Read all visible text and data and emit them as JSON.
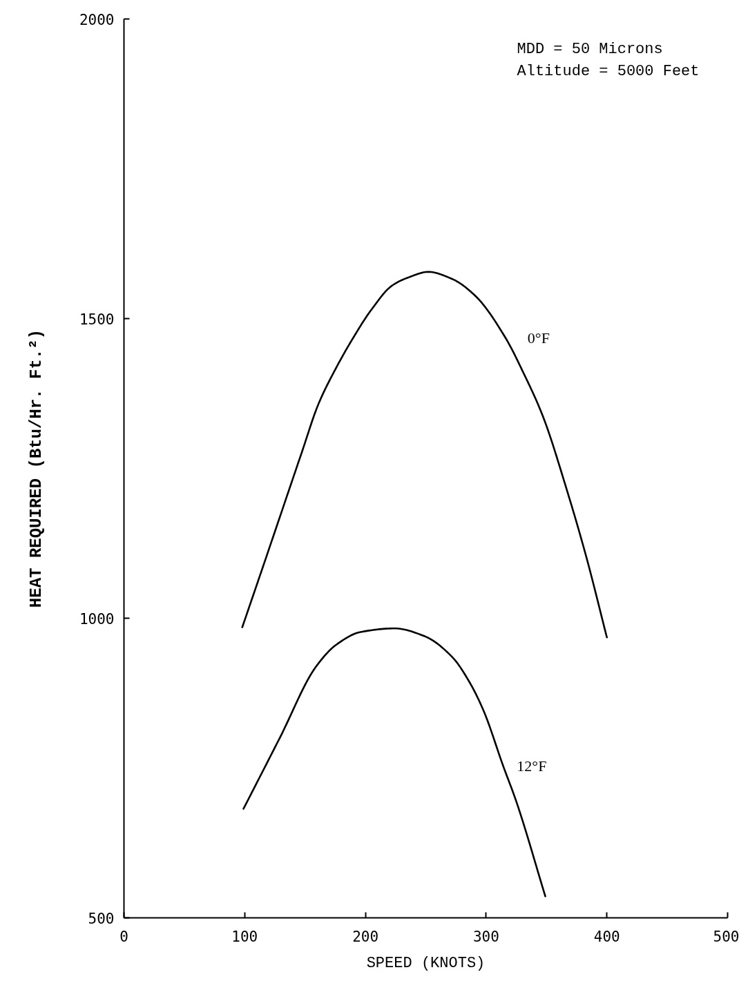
{
  "chart_data": {
    "type": "line",
    "xlabel": "SPEED (KNOTS)",
    "ylabel": "HEAT REQUIRED (Btu/Hr. Ft.²)",
    "annotations": [
      "MDD = 50 Microns",
      "Altitude = 5000 Feet"
    ],
    "xlim": [
      0,
      500
    ],
    "xticks": [
      0,
      100,
      200,
      300,
      400,
      500
    ],
    "ylim": [
      500,
      2000
    ],
    "yticks": [
      500,
      1000,
      1500,
      2000
    ],
    "series": [
      {
        "name": "0°F",
        "color": "#000000",
        "x": [
          98,
          117,
          134,
          147,
          161,
          175,
          189,
          205,
          222,
          236,
          252,
          272,
          291,
          316,
          331,
          347,
          367,
          383,
          400
        ],
        "values": [
          985,
          1097,
          1198,
          1275,
          1357,
          1415,
          1465,
          1515,
          1555,
          1569,
          1578,
          1566,
          1538,
          1468,
          1409,
          1337,
          1213,
          1102,
          968
        ]
      },
      {
        "name": "12°F",
        "color": "#000000",
        "x": [
          99,
          129,
          159,
          176,
          196,
          224,
          249,
          272,
          286,
          298,
          314,
          325,
          349
        ],
        "values": [
          682,
          800,
          919,
          956,
          977,
          983,
          970,
          935,
          894,
          845,
          754,
          694,
          536
        ]
      }
    ]
  }
}
